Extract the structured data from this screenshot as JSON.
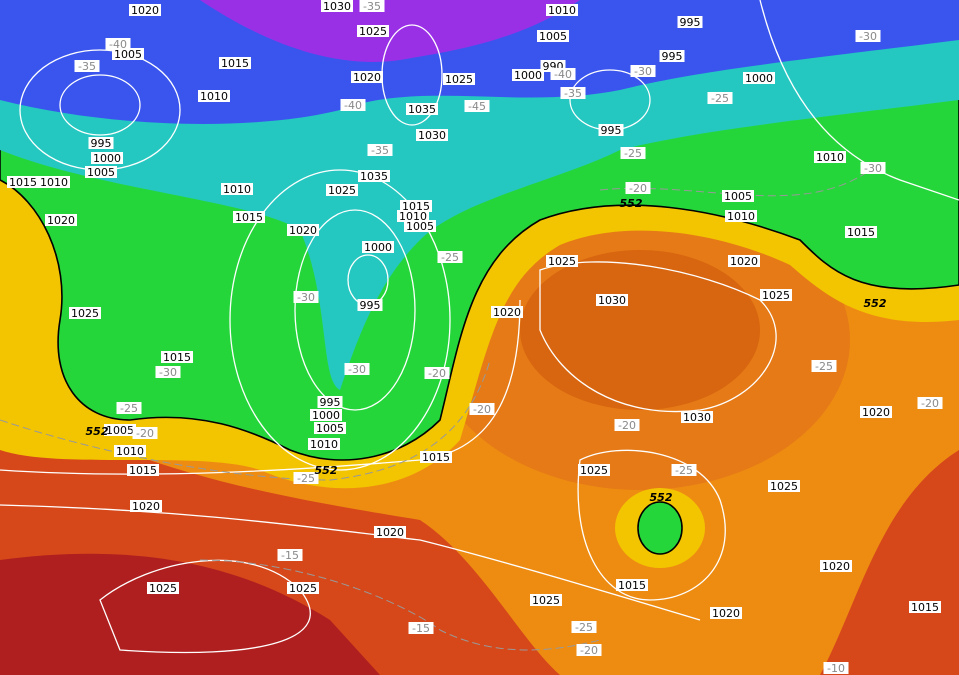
{
  "map": {
    "isobar_labels": [
      "1020",
      "1030",
      "1010",
      "995",
      "1005",
      "1025",
      "1005",
      "995",
      "1015",
      "1020",
      "1025",
      "990",
      "1000",
      "1000",
      "1010",
      "1035",
      "995",
      "1030",
      "995",
      "1000",
      "1005",
      "1010",
      "1035",
      "1015",
      "1010",
      "1010",
      "1025",
      "1005",
      "1015",
      "1015",
      "1010",
      "1010",
      "1020",
      "1005",
      "1015",
      "1020",
      "1000",
      "1025",
      "1020",
      "1025",
      "995",
      "1030",
      "1025",
      "1020",
      "1015",
      "995",
      "1000",
      "1005",
      "1005",
      "1010",
      "1010",
      "1015",
      "1030",
      "1020",
      "1015",
      "1025",
      "1025",
      "1020",
      "1020",
      "1020",
      "1015",
      "1025",
      "1025",
      "1025",
      "1015",
      "1020"
    ],
    "temperature_labels": [
      "-35",
      "-40",
      "-35",
      "-40",
      "-30",
      "-35",
      "-40",
      "-45",
      "-25",
      "-30",
      "-35",
      "-25",
      "-30",
      "-20",
      "-25",
      "-30",
      "-30",
      "-30",
      "-20",
      "-25",
      "-20",
      "-20",
      "-25",
      "-20",
      "-20",
      "-25",
      "-25",
      "-15",
      "-15",
      "-25",
      "-20",
      "-10"
    ],
    "height_labels": [
      "552",
      "552",
      "552",
      "552",
      "552"
    ]
  }
}
